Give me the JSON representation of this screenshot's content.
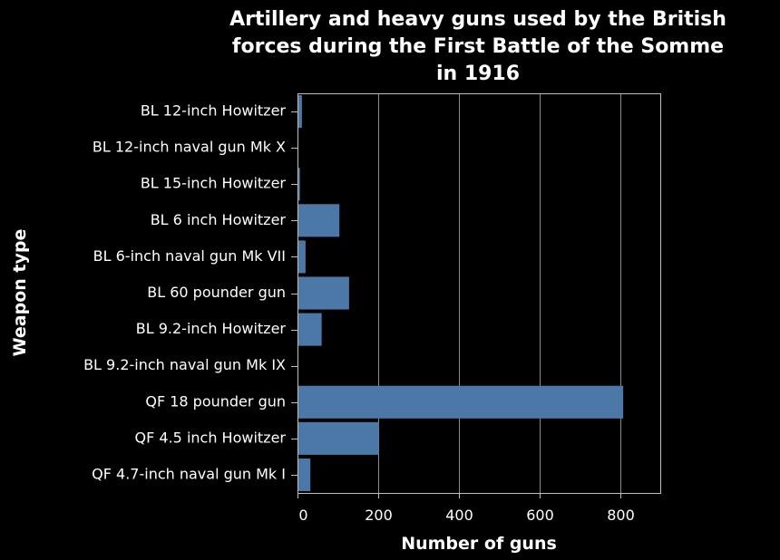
{
  "chart_data": {
    "type": "bar",
    "orientation": "horizontal",
    "title": [
      "Artillery and heavy guns used by the British",
      "forces during the First Battle of the Somme",
      "in 1916"
    ],
    "xlabel": "Number of guns",
    "ylabel": "Weapon type",
    "xlim": [
      0,
      900
    ],
    "xticks": [
      0,
      200,
      400,
      600,
      800
    ],
    "grid": true,
    "bar_color": "#4c78a8",
    "background_color": "#000000",
    "text_color": "#ffffff",
    "categories": [
      "BL 12-inch Howitzer",
      "BL 12-inch naval gun Mk X",
      "BL 15-inch Howitzer",
      "BL 6 inch Howitzer",
      "BL 6-inch naval gun Mk VII",
      "BL 60 pounder gun",
      "BL 9.2-inch Howitzer",
      "BL 9.2-inch naval gun Mk IX",
      "QF 18 pounder gun",
      "QF 4.5 inch Howitzer",
      "QF 4.7-inch naval gun Mk I"
    ],
    "values": [
      11,
      1,
      6,
      104,
      20,
      128,
      60,
      1,
      808,
      202,
      32
    ]
  }
}
